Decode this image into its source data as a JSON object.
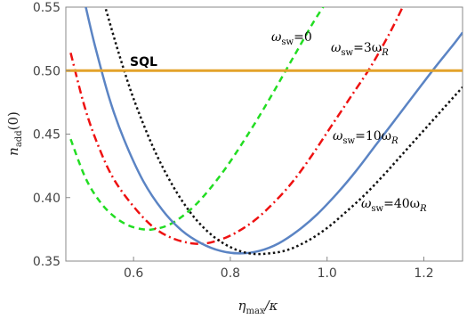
{
  "chart_data": {
    "type": "line",
    "xlim": [
      0.46,
      1.28
    ],
    "ylim": [
      0.35,
      0.55
    ],
    "xticks": [
      0.6,
      0.8,
      1.0,
      1.2
    ],
    "yticks": [
      0.35,
      0.4,
      0.45,
      0.5,
      0.55
    ],
    "xtick_labels": [
      "0.6",
      "0.8",
      "1.0",
      "1.2"
    ],
    "ytick_labels": [
      "0.35",
      "0.40",
      "0.45",
      "0.50",
      "0.55"
    ],
    "xlabel": {
      "main": "η",
      "sub": "max",
      "tail": "/κ"
    },
    "ylabel": {
      "main": "n",
      "sub": "add",
      "tail": "(0)"
    },
    "grid": false,
    "sql": {
      "label": "SQL",
      "value": 0.5,
      "color": "#e3a32b"
    },
    "series": [
      {
        "key": "w0",
        "color": "#22dd22",
        "style": "dashed",
        "label": {
          "pre": "ω",
          "sub": "sw",
          "post": "=0",
          "post_sub": ""
        },
        "x": [
          0.47,
          0.5,
          0.53,
          0.56,
          0.59,
          0.62,
          0.64,
          0.67,
          0.7,
          0.73,
          0.76,
          0.79,
          0.82,
          0.85,
          0.88,
          0.91,
          0.94,
          0.97,
          1.0
        ],
        "y": [
          0.446,
          0.416,
          0.397,
          0.385,
          0.378,
          0.375,
          0.375,
          0.378,
          0.385,
          0.395,
          0.408,
          0.423,
          0.44,
          0.458,
          0.477,
          0.497,
          0.517,
          0.537,
          0.555
        ]
      },
      {
        "key": "w3",
        "color": "#ee1111",
        "style": "dashdot",
        "label": {
          "pre": "ω",
          "sub": "sw",
          "post": "=3ω",
          "post_sub": "R"
        },
        "x": [
          0.47,
          0.5,
          0.53,
          0.56,
          0.6,
          0.64,
          0.68,
          0.72,
          0.75,
          0.78,
          0.81,
          0.85,
          0.89,
          0.93,
          0.97,
          1.01,
          1.05,
          1.09,
          1.13,
          1.16
        ],
        "y": [
          0.514,
          0.47,
          0.438,
          0.414,
          0.393,
          0.377,
          0.368,
          0.364,
          0.364,
          0.367,
          0.372,
          0.382,
          0.396,
          0.413,
          0.434,
          0.457,
          0.48,
          0.503,
          0.53,
          0.553
        ]
      },
      {
        "key": "w10",
        "color": "#5b84c4",
        "style": "solid",
        "label": {
          "pre": "ω",
          "sub": "sw",
          "post": "=10ω",
          "post_sub": "R"
        },
        "x": [
          0.5,
          0.52,
          0.55,
          0.58,
          0.62,
          0.66,
          0.7,
          0.74,
          0.78,
          0.82,
          0.86,
          0.9,
          0.94,
          0.98,
          1.02,
          1.06,
          1.1,
          1.14,
          1.18,
          1.22,
          1.26,
          1.28
        ],
        "y": [
          0.552,
          0.52,
          0.478,
          0.446,
          0.413,
          0.39,
          0.374,
          0.364,
          0.358,
          0.356,
          0.358,
          0.364,
          0.374,
          0.387,
          0.403,
          0.421,
          0.441,
          0.461,
          0.481,
          0.501,
          0.52,
          0.53
        ]
      },
      {
        "key": "w40",
        "color": "#111111",
        "style": "dotted",
        "label": {
          "pre": "ω",
          "sub": "sw",
          "post": "=40ω",
          "post_sub": "R"
        },
        "x": [
          0.54,
          0.57,
          0.6,
          0.64,
          0.68,
          0.72,
          0.76,
          0.8,
          0.84,
          0.88,
          0.92,
          0.96,
          1.0,
          1.04,
          1.08,
          1.12,
          1.16,
          1.2,
          1.24,
          1.28
        ],
        "y": [
          0.552,
          0.513,
          0.478,
          0.44,
          0.41,
          0.387,
          0.371,
          0.361,
          0.356,
          0.356,
          0.359,
          0.366,
          0.376,
          0.389,
          0.403,
          0.419,
          0.436,
          0.453,
          0.47,
          0.487
        ]
      }
    ]
  }
}
